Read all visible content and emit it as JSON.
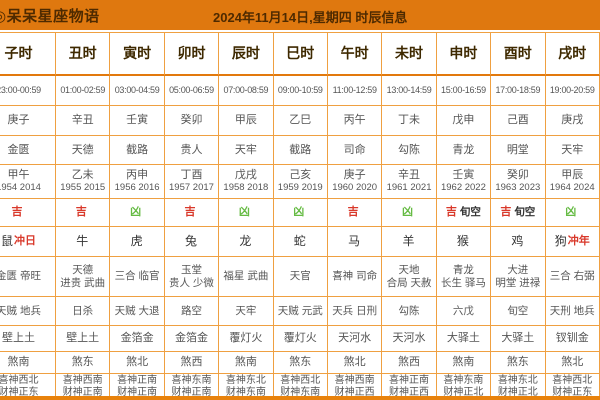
{
  "header": {
    "logo": "◎呆呆星座物语",
    "date_info": "2024年11月14日,星期四 时辰信息"
  },
  "colors": {
    "header_bg": "#df780f",
    "header_text": "#4e2a00",
    "grid_line": "#efa041",
    "accent_orange": "#e8820c",
    "lucky_red": "#d9382a",
    "unlucky_green": "#66bb44"
  },
  "table": {
    "columns": [
      {
        "name": "子时",
        "time": "23:00-00:59",
        "ganzhi": "庚子",
        "zhishen": "金匮",
        "chong": "甲午",
        "chong_years": "1954 2014",
        "verdict": "吉",
        "verdict_extra": "",
        "animal": "鼠",
        "animal_extra": "冲日",
        "jishen": "金匮 帝旺",
        "xiongshen": "天贼 地兵",
        "nayin": "壁上土",
        "sha": "煞南",
        "xicai": "喜神西北\n财神正东"
      },
      {
        "name": "丑时",
        "time": "01:00-02:59",
        "ganzhi": "辛丑",
        "zhishen": "天德",
        "chong": "乙未",
        "chong_years": "1955 2015",
        "verdict": "吉",
        "verdict_extra": "",
        "animal": "牛",
        "animal_extra": "",
        "jishen": "天德\n进贵 武曲",
        "xiongshen": "日杀",
        "nayin": "壁上土",
        "sha": "煞东",
        "xicai": "喜神西南\n财神正南"
      },
      {
        "name": "寅时",
        "time": "03:00-04:59",
        "ganzhi": "壬寅",
        "zhishen": "截路",
        "chong": "丙申",
        "chong_years": "1956 2016",
        "verdict": "凶",
        "verdict_extra": "",
        "animal": "虎",
        "animal_extra": "",
        "jishen": "三合 临官",
        "xiongshen": "天贼 大退",
        "nayin": "金箔金",
        "sha": "煞北",
        "xicai": "喜神正南\n财神正南"
      },
      {
        "name": "卯时",
        "time": "05:00-06:59",
        "ganzhi": "癸卯",
        "zhishen": "贵人",
        "chong": "丁酉",
        "chong_years": "1957 2017",
        "verdict": "吉",
        "verdict_extra": "",
        "animal": "兔",
        "animal_extra": "",
        "jishen": "玉堂\n贵人 少微",
        "xiongshen": "路空",
        "nayin": "金箔金",
        "sha": "煞西",
        "xicai": "喜神东南\n财神正南"
      },
      {
        "name": "辰时",
        "time": "07:00-08:59",
        "ganzhi": "甲辰",
        "zhishen": "天牢",
        "chong": "戊戌",
        "chong_years": "1958 2018",
        "verdict": "凶",
        "verdict_extra": "",
        "animal": "龙",
        "animal_extra": "",
        "jishen": "福星 武曲",
        "xiongshen": "天牢",
        "nayin": "覆灯火",
        "sha": "煞南",
        "xicai": "喜神东北\n财神东南"
      },
      {
        "name": "巳时",
        "time": "09:00-10:59",
        "ganzhi": "乙巳",
        "zhishen": "截路",
        "chong": "己亥",
        "chong_years": "1959 2019",
        "verdict": "凶",
        "verdict_extra": "",
        "animal": "蛇",
        "animal_extra": "",
        "jishen": "天官",
        "xiongshen": "天贼 元武",
        "nayin": "覆灯火",
        "sha": "煞东",
        "xicai": "喜神西北\n财神东南"
      },
      {
        "name": "午时",
        "time": "11:00-12:59",
        "ganzhi": "丙午",
        "zhishen": "司命",
        "chong": "庚子",
        "chong_years": "1960 2020",
        "verdict": "吉",
        "verdict_extra": "",
        "animal": "马",
        "animal_extra": "",
        "jishen": "喜神 司命",
        "xiongshen": "天兵 日刑",
        "nayin": "天河水",
        "sha": "煞北",
        "xicai": "喜神西南\n财神正西"
      },
      {
        "name": "未时",
        "time": "13:00-14:59",
        "ganzhi": "丁未",
        "zhishen": "勾陈",
        "chong": "辛丑",
        "chong_years": "1961 2021",
        "verdict": "凶",
        "verdict_extra": "",
        "animal": "羊",
        "animal_extra": "",
        "jishen": "天地\n合局 天赦",
        "xiongshen": "勾陈",
        "nayin": "天河水",
        "sha": "煞西",
        "xicai": "喜神正南\n财神正西"
      },
      {
        "name": "申时",
        "time": "15:00-16:59",
        "ganzhi": "戊申",
        "zhishen": "青龙",
        "chong": "壬寅",
        "chong_years": "1962 2022",
        "verdict": "吉",
        "verdict_extra": "旬空",
        "animal": "猴",
        "animal_extra": "",
        "jishen": "青龙\n长生 驿马",
        "xiongshen": "六戊",
        "nayin": "大驿土",
        "sha": "煞南",
        "xicai": "喜神东南\n财神正北"
      },
      {
        "name": "酉时",
        "time": "17:00-18:59",
        "ganzhi": "己酉",
        "zhishen": "明堂",
        "chong": "癸卯",
        "chong_years": "1963 2023",
        "verdict": "吉",
        "verdict_extra": "旬空",
        "animal": "鸡",
        "animal_extra": "",
        "jishen": "大进\n明堂 进禄",
        "xiongshen": "旬空",
        "nayin": "大驿土",
        "sha": "煞东",
        "xicai": "喜神东北\n财神正北"
      },
      {
        "name": "戌时",
        "time": "19:00-20:59",
        "ganzhi": "庚戌",
        "zhishen": "天牢",
        "chong": "甲辰",
        "chong_years": "1964 2024",
        "verdict": "凶",
        "verdict_extra": "",
        "animal": "狗",
        "animal_extra": "冲年",
        "jishen": "三合 右弼",
        "xiongshen": "天刑 地兵",
        "nayin": "钗钏金",
        "sha": "煞北",
        "xicai": "喜神西北\n财神正东"
      }
    ]
  }
}
